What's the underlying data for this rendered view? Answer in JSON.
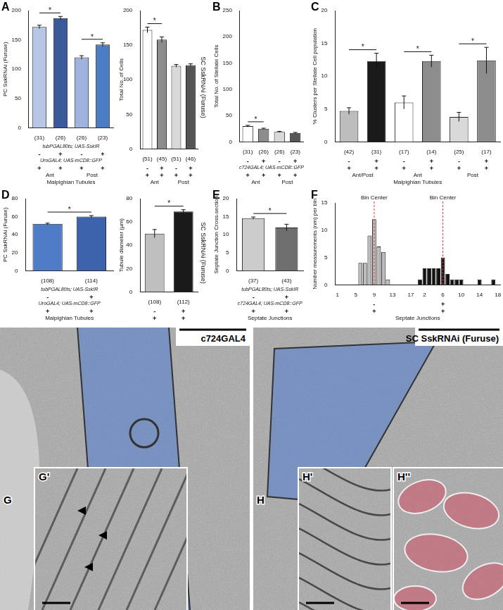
{
  "chart_data": [
    {
      "panel": "A",
      "type": "bar",
      "ylabel": "PC SskRNAi (Furuse)",
      "categories": [
        "(31)",
        "(26)",
        "(26)",
        "(23)"
      ],
      "values": [
        172,
        187,
        120,
        142
      ],
      "errors": [
        3,
        3,
        3,
        3
      ],
      "colors": [
        "#b8c6e6",
        "#3b5a9a",
        "#9fb3dc",
        "#4c7cc4"
      ],
      "ylim": [
        0,
        200
      ],
      "yticks": [
        0,
        50,
        100,
        150,
        200
      ],
      "grid": false,
      "annotations": [
        {
          "text": "*",
          "from": 0,
          "to": 1
        },
        {
          "text": "*",
          "from": 2,
          "to": 3
        }
      ],
      "rows": [
        {
          "label": "tubPGAL80ts; UAS-SskIR",
          "values": [
            "-",
            "+",
            "-",
            "+"
          ]
        },
        {
          "label": "UroGAL4; UAS-mCD8::GFP",
          "values": [
            "+",
            "+",
            "+",
            "+"
          ]
        }
      ],
      "groups": [
        {
          "label": "Ant",
          "from": 0,
          "to": 1
        },
        {
          "label": "Post",
          "from": 2,
          "to": 3
        }
      ],
      "xlabel": "Malpighian Tubules"
    },
    {
      "type": "bar",
      "ylabel": "Total No. of Cells",
      "title": "SC SskRNAi (Furuse)",
      "categories": [
        "(51)",
        "(45)",
        "(51)",
        "(46)"
      ],
      "values": [
        172,
        158,
        120,
        121
      ],
      "errors": [
        4,
        4,
        2,
        2
      ],
      "colors": [
        "#ffffff",
        "#8c8c8c",
        "#d9d9d9",
        "#555555"
      ],
      "ylim": [
        0,
        200
      ],
      "yticks": [
        0,
        50,
        100,
        150,
        200
      ],
      "grid": false,
      "annotations": [
        {
          "text": "*",
          "from": 0,
          "to": 1
        }
      ],
      "rows": [
        {
          "values": [
            "-",
            "+",
            "-",
            "+"
          ]
        },
        {
          "values": [
            "+",
            "+",
            "+",
            "+"
          ]
        }
      ],
      "groups": [
        {
          "label": "Ant",
          "from": 0,
          "to": 1
        },
        {
          "label": "Post",
          "from": 2,
          "to": 3
        }
      ]
    },
    {
      "panel": "B",
      "type": "bar",
      "ylabel": "Total No. of Stellate Cells",
      "categories": [
        "(31)",
        "(26)",
        "(26)",
        "(23)"
      ],
      "values": [
        30,
        25,
        19,
        17
      ],
      "errors": [
        1.5,
        1,
        1,
        1
      ],
      "colors": [
        "#ffffff",
        "#8c8c8c",
        "#d9d9d9",
        "#555555"
      ],
      "ylim": [
        0,
        250
      ],
      "yticks": [
        0,
        50,
        100,
        150,
        200,
        250
      ],
      "grid": false,
      "annotations": [
        {
          "text": "*",
          "from": 0,
          "to": 1
        }
      ],
      "rows": [
        {
          "values": [
            "-",
            "+",
            "-",
            "+"
          ]
        },
        {
          "label": "c724GAL4; UAS-mCD8::GFP",
          "values": [
            "+",
            "+",
            "+",
            "+"
          ]
        }
      ],
      "groups": [
        {
          "label": "Ant",
          "from": 0,
          "to": 1
        },
        {
          "label": "Post",
          "from": 2,
          "to": 3
        }
      ]
    },
    {
      "panel": "C",
      "type": "bar",
      "ylabel": "% Clusters per Stellate Cell population",
      "categories": [
        "(42)",
        "(31)",
        "(17)",
        "(14)",
        "(25)",
        "(17)"
      ],
      "values": [
        4.7,
        12.3,
        6,
        12.3,
        3.8,
        12.4
      ],
      "errors": [
        0.5,
        1.2,
        1,
        0.9,
        0.7,
        2
      ],
      "colors": [
        "#bdbdbd",
        "#1a1a1a",
        "#ffffff",
        "#8c8c8c",
        "#d9d9d9",
        "#8c8c8c"
      ],
      "ylim": [
        0,
        20
      ],
      "yticks": [
        0,
        5,
        10,
        15,
        20
      ],
      "grid": false,
      "annotations": [
        {
          "text": "*",
          "from": 0,
          "to": 1
        },
        {
          "text": "*",
          "from": 2,
          "to": 3
        },
        {
          "text": "*",
          "from": 4,
          "to": 5
        }
      ],
      "rows": [
        {
          "values": [
            "-",
            "+",
            "-",
            "+",
            "-",
            "+"
          ]
        },
        {
          "values": [
            "+",
            "+",
            "+",
            "+",
            "+",
            "+"
          ]
        }
      ],
      "groups": [
        {
          "label": "Ant/Post",
          "from": 0,
          "to": 1
        },
        {
          "label": "Ant",
          "from": 2,
          "to": 3
        },
        {
          "label": "Post",
          "from": 4,
          "to": 5
        }
      ],
      "xlabel": "Malpighian Tubules"
    },
    {
      "panel": "D",
      "type": "bar",
      "ylabel": "PC SskRNAi (Furuse)",
      "categories": [
        "(108)",
        "(114)"
      ],
      "values": [
        52,
        60
      ],
      "errors": [
        0.8,
        1.2
      ],
      "colors": [
        "#4f7cc7",
        "#3e63ad"
      ],
      "ylim": [
        0,
        80
      ],
      "yticks": [
        0,
        20,
        40,
        60,
        80
      ],
      "grid": false,
      "annotations": [
        {
          "text": "*",
          "from": 0,
          "to": 1
        }
      ],
      "rows": [
        {
          "label": "tubPGAL80ts; UAS-SskIR",
          "values": [
            "-",
            "+"
          ]
        },
        {
          "label": "UroGAL4; UAS-mCD8::GFP",
          "values": [
            "+",
            "+"
          ]
        }
      ],
      "xlabel": "Malpighian Tubules"
    },
    {
      "type": "bar",
      "ylabel": "Tubule diameter (µm)",
      "title": "SC SskRNAi (Furuse)",
      "categories": [
        "(108)",
        "(112)"
      ],
      "values": [
        50,
        69
      ],
      "errors": [
        3.5,
        1.5
      ],
      "colors": [
        "#bfbfbf",
        "#1a1a1a"
      ],
      "ylim": [
        0,
        80
      ],
      "yticks": [
        0,
        20,
        40,
        60,
        80
      ],
      "grid": false,
      "annotations": [
        {
          "text": "*",
          "from": 0,
          "to": 1
        }
      ],
      "rows": [
        {
          "values": [
            "-",
            "+"
          ]
        },
        {
          "values": [
            "+",
            "+"
          ]
        }
      ]
    },
    {
      "panel": "E",
      "type": "bar",
      "ylabel": "Septate Junction Cross-section",
      "categories": [
        "(37)",
        "(43)"
      ],
      "values": [
        14.6,
        12
      ],
      "errors": [
        0.3,
        0.9
      ],
      "colors": [
        "#cccccc",
        "#6e6e6e"
      ],
      "ylim": [
        0,
        20
      ],
      "yticks": [
        0,
        5,
        10,
        15,
        20
      ],
      "grid": false,
      "annotations": [
        {
          "text": "*",
          "from": 0,
          "to": 1
        }
      ],
      "rows": [
        {
          "label": "tubPGAL80ts; UAS-SskIR",
          "values": [
            "-",
            "+"
          ]
        },
        {
          "label": "c724GAL4; UAS-mCD8::GFP",
          "values": [
            "+",
            "+"
          ]
        }
      ],
      "xlabel": "Septate Junctions"
    },
    {
      "panel": "F",
      "type": "bar",
      "ylabel": "Number measurements (nm) per bin",
      "categories": [
        1,
        null,
        null,
        null,
        5,
        null,
        null,
        null,
        9,
        null,
        null,
        null,
        13,
        null,
        null,
        null,
        17,
        null,
        null,
        2,
        null,
        null,
        null,
        6,
        null,
        null,
        null,
        10,
        null,
        null,
        null,
        14,
        null,
        null,
        null,
        18
      ],
      "series": [
        {
          "color": "#bdbdbd",
          "values": [
            null,
            null,
            null,
            null,
            null,
            4,
            4,
            9,
            12,
            7,
            6,
            1,
            null,
            null,
            null,
            null,
            null,
            null,
            null,
            null,
            null,
            null,
            null,
            null,
            null,
            null,
            null,
            null,
            null,
            null,
            null,
            null,
            null,
            null,
            null,
            null
          ]
        },
        {
          "color": "#111111",
          "values": [
            null,
            null,
            null,
            null,
            null,
            null,
            null,
            null,
            null,
            null,
            null,
            null,
            null,
            null,
            null,
            null,
            null,
            null,
            1,
            3,
            3,
            3,
            3,
            5,
            2,
            1,
            1,
            1,
            null,
            null,
            null,
            1,
            null,
            null,
            1,
            null
          ]
        }
      ],
      "ylim": [
        0,
        15
      ],
      "yticks": [
        0,
        5,
        10,
        15
      ],
      "grid": false,
      "vlines": [
        {
          "label": "Bin Center",
          "at": 8
        },
        {
          "label": "Bin Center",
          "at": 23
        }
      ],
      "rows": [
        {
          "values": [
            null,
            null,
            null,
            null,
            null,
            null,
            null,
            null,
            "-",
            null,
            null,
            null,
            null,
            null,
            null,
            null,
            null,
            null,
            null,
            null,
            null,
            null,
            null,
            "+",
            null,
            null,
            null,
            null,
            null,
            null,
            null,
            null,
            null,
            null,
            null,
            null
          ]
        },
        {
          "values": [
            null,
            null,
            null,
            null,
            null,
            null,
            null,
            null,
            "+",
            null,
            null,
            null,
            null,
            null,
            null,
            null,
            null,
            null,
            null,
            null,
            null,
            null,
            null,
            "+",
            null,
            null,
            null,
            null,
            null,
            null,
            null,
            null,
            null,
            null,
            null,
            null
          ]
        }
      ],
      "xlabel": "Septate Junctions"
    }
  ],
  "images": [
    {
      "panel": "G",
      "label": "c724GAL4"
    },
    {
      "panel": "G'"
    },
    {
      "panel": "H",
      "label": "SC SskRNAi (Furuse)"
    },
    {
      "panel": "H'"
    },
    {
      "panel": "H''"
    }
  ]
}
